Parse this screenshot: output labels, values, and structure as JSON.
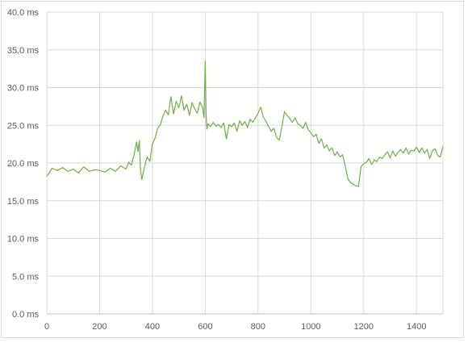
{
  "chart_data": {
    "type": "line",
    "title": "",
    "xlabel": "",
    "ylabel": "",
    "xlim": [
      0,
      1500
    ],
    "ylim": [
      0,
      40
    ],
    "x_ticks": [
      0,
      200,
      400,
      600,
      800,
      1000,
      1200,
      1400
    ],
    "x_tick_labels": [
      "0",
      "200",
      "400",
      "600",
      "800",
      "1000",
      "1200",
      "1400"
    ],
    "y_ticks": [
      0,
      5,
      10,
      15,
      20,
      25,
      30,
      35,
      40
    ],
    "y_tick_labels": [
      "0.0 ms",
      "5.0 ms",
      "10.0 ms",
      "15.0 ms",
      "20.0 ms",
      "25.0 ms",
      "30.0 ms",
      "35.0 ms",
      "40.0 ms"
    ],
    "grid": true,
    "legend": "none",
    "series": [
      {
        "color": "#70ad47",
        "x": [
          0,
          20,
          40,
          60,
          80,
          100,
          120,
          140,
          160,
          180,
          200,
          220,
          240,
          260,
          280,
          300,
          310,
          320,
          330,
          340,
          345,
          350,
          355,
          360,
          370,
          380,
          390,
          400,
          410,
          420,
          430,
          440,
          450,
          460,
          470,
          480,
          490,
          500,
          510,
          520,
          530,
          540,
          550,
          560,
          570,
          580,
          590,
          595,
          600,
          603,
          606,
          610,
          620,
          630,
          640,
          650,
          660,
          670,
          680,
          690,
          700,
          710,
          720,
          730,
          740,
          750,
          760,
          770,
          780,
          790,
          800,
          810,
          820,
          830,
          840,
          850,
          860,
          870,
          880,
          890,
          900,
          910,
          920,
          930,
          940,
          950,
          960,
          970,
          980,
          990,
          1000,
          1010,
          1020,
          1030,
          1040,
          1050,
          1060,
          1070,
          1080,
          1090,
          1100,
          1110,
          1120,
          1130,
          1140,
          1150,
          1160,
          1170,
          1180,
          1190,
          1200,
          1210,
          1220,
          1230,
          1240,
          1250,
          1260,
          1270,
          1280,
          1290,
          1300,
          1310,
          1320,
          1330,
          1340,
          1350,
          1360,
          1370,
          1380,
          1390,
          1400,
          1410,
          1420,
          1430,
          1440,
          1450,
          1460,
          1470,
          1480,
          1490,
          1500
        ],
        "y": [
          18.2,
          19.3,
          19.0,
          19.4,
          18.9,
          19.2,
          18.7,
          19.5,
          18.9,
          19.1,
          19.0,
          18.8,
          19.3,
          18.9,
          19.6,
          19.2,
          20.1,
          19.7,
          21.0,
          22.8,
          21.5,
          23.0,
          19.0,
          17.8,
          19.5,
          20.8,
          20.2,
          22.5,
          23.3,
          24.6,
          25.1,
          26.2,
          27.0,
          26.4,
          28.8,
          26.5,
          28.2,
          27.3,
          28.9,
          27.0,
          27.8,
          26.3,
          28.0,
          27.2,
          26.6,
          28.1,
          27.3,
          26.0,
          33.5,
          26.5,
          24.5,
          25.2,
          24.8,
          25.4,
          24.9,
          25.1,
          24.7,
          25.3,
          23.2,
          25.1,
          24.8,
          25.3,
          24.2,
          25.6,
          25.0,
          25.5,
          24.7,
          25.8,
          25.4,
          26.0,
          26.6,
          27.4,
          26.1,
          25.5,
          24.8,
          24.2,
          24.6,
          23.4,
          23.0,
          24.8,
          26.8,
          26.3,
          25.9,
          25.4,
          26.0,
          25.2,
          25.0,
          24.6,
          25.4,
          24.4,
          24.0,
          23.5,
          23.8,
          22.6,
          23.2,
          22.0,
          22.4,
          21.6,
          22.0,
          21.0,
          21.5,
          20.8,
          21.1,
          19.6,
          17.9,
          17.4,
          17.2,
          17.0,
          16.9,
          19.5,
          19.9,
          20.1,
          20.6,
          19.8,
          20.4,
          20.2,
          20.8,
          20.6,
          21.1,
          21.5,
          20.7,
          21.6,
          20.9,
          21.4,
          21.8,
          21.3,
          22.0,
          21.2,
          21.7,
          21.6,
          22.1,
          21.4,
          22.0,
          21.3,
          21.8,
          20.6,
          21.6,
          21.9,
          21.0,
          20.8,
          22.2
        ]
      }
    ]
  }
}
